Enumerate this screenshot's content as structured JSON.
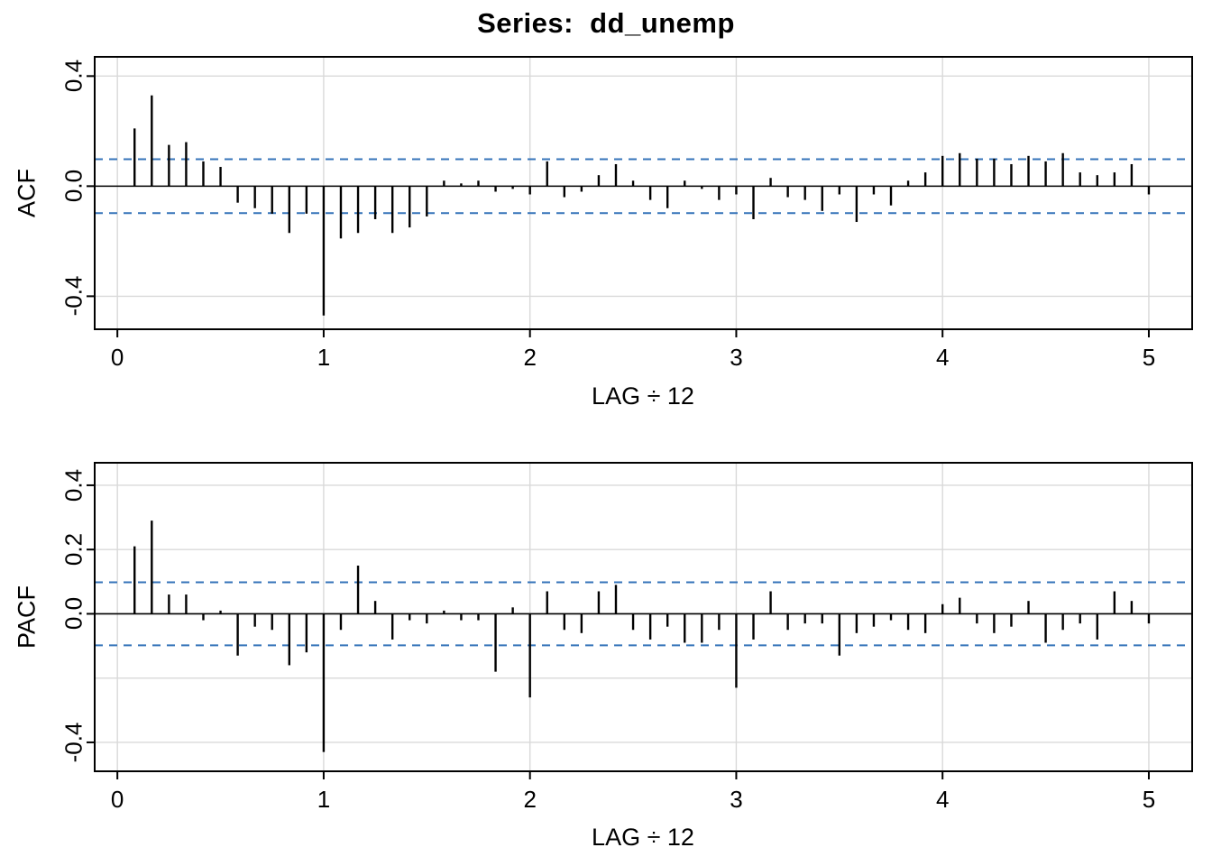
{
  "title": "Series:  dd_unemp",
  "colors": {
    "bar": "#000000",
    "conf_line": "#3573B9",
    "grid": "#D9D9D9",
    "axis": "#000000",
    "background": "#FFFFFF"
  },
  "chart_data": [
    {
      "type": "bar",
      "title": "Series:  dd_unemp",
      "series_name": "ACF",
      "ylabel": "ACF",
      "xlabel": "LAG ÷ 12",
      "x_description": "x = lag/12 for lags 1..60",
      "lag_divisor": 12,
      "values": [
        0.21,
        0.33,
        0.15,
        0.16,
        0.09,
        0.07,
        -0.06,
        -0.08,
        -0.1,
        -0.17,
        -0.1,
        -0.47,
        -0.19,
        -0.17,
        -0.12,
        -0.17,
        -0.15,
        -0.11,
        0.02,
        0.01,
        0.02,
        -0.02,
        -0.01,
        -0.03,
        0.09,
        -0.04,
        -0.02,
        0.04,
        0.08,
        0.02,
        -0.05,
        -0.08,
        0.02,
        -0.01,
        -0.05,
        -0.03,
        -0.12,
        0.03,
        -0.04,
        -0.05,
        -0.09,
        -0.03,
        -0.13,
        -0.03,
        -0.07,
        0.02,
        0.05,
        0.11,
        0.12,
        0.1,
        0.1,
        0.08,
        0.11,
        0.09,
        0.12,
        0.05,
        0.04,
        0.05,
        0.08,
        -0.03
      ],
      "xlim": [
        0,
        5
      ],
      "ylim": [
        -0.52,
        0.47
      ],
      "xtick_labels": [
        "0",
        "1",
        "2",
        "3",
        "4",
        "5"
      ],
      "xtick_values": [
        0,
        1,
        2,
        3,
        4,
        5
      ],
      "ytick_labels": [
        "0.4",
        "0.0",
        "-0.4"
      ],
      "ytick_values": [
        0.4,
        0.0,
        -0.4
      ],
      "grid_y": [
        0.4,
        0.0,
        -0.4
      ],
      "conf_band": 0.098,
      "conf_style": "dashed",
      "legend": "none",
      "grid": "on"
    },
    {
      "type": "bar",
      "title": "Series:  dd_unemp",
      "series_name": "PACF",
      "ylabel": "PACF",
      "xlabel": "LAG ÷ 12",
      "x_description": "x = lag/12 for lags 1..60",
      "lag_divisor": 12,
      "values": [
        0.21,
        0.29,
        0.06,
        0.06,
        -0.02,
        0.01,
        -0.13,
        -0.04,
        -0.05,
        -0.16,
        -0.12,
        -0.43,
        -0.05,
        0.15,
        0.04,
        -0.08,
        -0.02,
        -0.03,
        0.01,
        -0.02,
        -0.02,
        -0.18,
        0.02,
        -0.26,
        0.07,
        -0.05,
        -0.06,
        0.07,
        0.09,
        -0.05,
        -0.08,
        -0.04,
        -0.09,
        -0.09,
        -0.05,
        -0.23,
        -0.08,
        0.07,
        -0.05,
        -0.03,
        -0.03,
        -0.13,
        -0.06,
        -0.04,
        -0.02,
        -0.05,
        -0.06,
        0.03,
        0.05,
        -0.03,
        -0.06,
        -0.04,
        0.04,
        -0.09,
        -0.05,
        -0.03,
        -0.08,
        0.07,
        0.04,
        -0.03
      ],
      "xlim": [
        0,
        5
      ],
      "ylim": [
        -0.49,
        0.47
      ],
      "xtick_labels": [
        "0",
        "1",
        "2",
        "3",
        "4",
        "5"
      ],
      "xtick_values": [
        0,
        1,
        2,
        3,
        4,
        5
      ],
      "ytick_labels": [
        "0.4",
        "0.2",
        "0.0",
        "-0.4"
      ],
      "ytick_values": [
        0.4,
        0.2,
        0.0,
        -0.4
      ],
      "grid_y": [
        0.4,
        0.2,
        0.0,
        -0.2,
        -0.4
      ],
      "conf_band": 0.098,
      "conf_style": "dashed",
      "legend": "none",
      "grid": "on"
    }
  ]
}
